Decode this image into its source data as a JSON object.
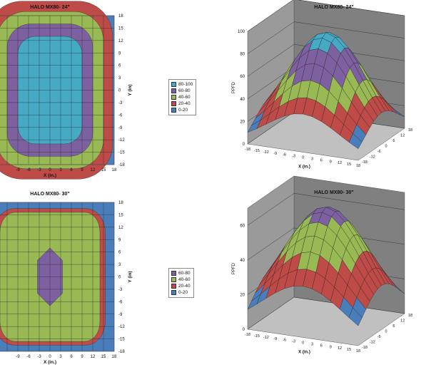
{
  "colors": {
    "0-20": "#4a7ebb",
    "20-40": "#be4b48",
    "40-60": "#98b954",
    "60-80": "#7d60a0",
    "80-100": "#46aac5"
  },
  "chart_data": [
    {
      "type": "heatmap",
      "title": "HALO MX80- 24\"",
      "xlabel": "X (in.)",
      "ylabel": "Y (in)",
      "x_ticks": [
        "-9",
        "-6",
        "-3",
        "0",
        "3",
        "6",
        "9",
        "12",
        "15",
        "18"
      ],
      "y_ticks": [
        "18",
        "15",
        "12",
        "9",
        "6",
        "3",
        "0",
        "-3",
        "-6",
        "-9",
        "-12",
        "-15",
        "-18"
      ],
      "xlim": [
        -18,
        18
      ],
      "ylim": [
        -18,
        18
      ],
      "contour_semi_axes": [
        [
          9,
          13
        ],
        [
          12,
          16
        ],
        [
          15,
          19
        ],
        [
          17.5,
          21.5
        ]
      ],
      "legend": [
        "80-100",
        "60-80",
        "40-60",
        "20-40",
        "0-20"
      ]
    },
    {
      "type": "area",
      "title": "HALO MX80- 24\"",
      "chart": "3d-surface",
      "xlabel": "X (in.)",
      "zlabel": "PPFD",
      "z_ticks": [
        "0",
        "20",
        "40",
        "60",
        "80",
        "100"
      ],
      "zlim": [
        0,
        100
      ],
      "x_ticks": [
        "-18",
        "-15",
        "-12",
        "-9",
        "-6",
        "-3",
        "0",
        "3",
        "6",
        "9",
        "12",
        "15",
        "18"
      ],
      "y_ticks": [
        "-18",
        "-12",
        "-6",
        "0",
        "6",
        "12",
        "18"
      ],
      "peak": 92
    },
    {
      "type": "heatmap",
      "title": "HALO MX80- 30\"",
      "xlabel": "X (in.)",
      "ylabel": "Y (in)",
      "x_ticks": [
        "-9",
        "-6",
        "-3",
        "0",
        "3",
        "6",
        "9",
        "12",
        "15",
        "18"
      ],
      "y_ticks": [
        "18",
        "15",
        "12",
        "9",
        "6",
        "3",
        "0",
        "-3",
        "-6",
        "-9",
        "-12",
        "-15",
        "-18"
      ],
      "xlim": [
        -18,
        18
      ],
      "ylim": [
        -18,
        18
      ],
      "legend": [
        "60-80",
        "40-60",
        "20-40",
        "0-20"
      ]
    },
    {
      "type": "area",
      "title": "HALO MX80- 30\"",
      "chart": "3d-surface",
      "xlabel": "X (in.)",
      "zlabel": "PPFD",
      "z_ticks": [
        "0",
        "20",
        "40",
        "60"
      ],
      "zlim": [
        0,
        70
      ],
      "x_ticks": [
        "-18",
        "-15",
        "-12",
        "-9",
        "-6",
        "-3",
        "0",
        "3",
        "6",
        "9",
        "12",
        "15",
        "18"
      ],
      "y_ticks": [
        "-18",
        "-12",
        "-6",
        "0",
        "6",
        "12",
        "18"
      ],
      "peak": 66
    }
  ]
}
